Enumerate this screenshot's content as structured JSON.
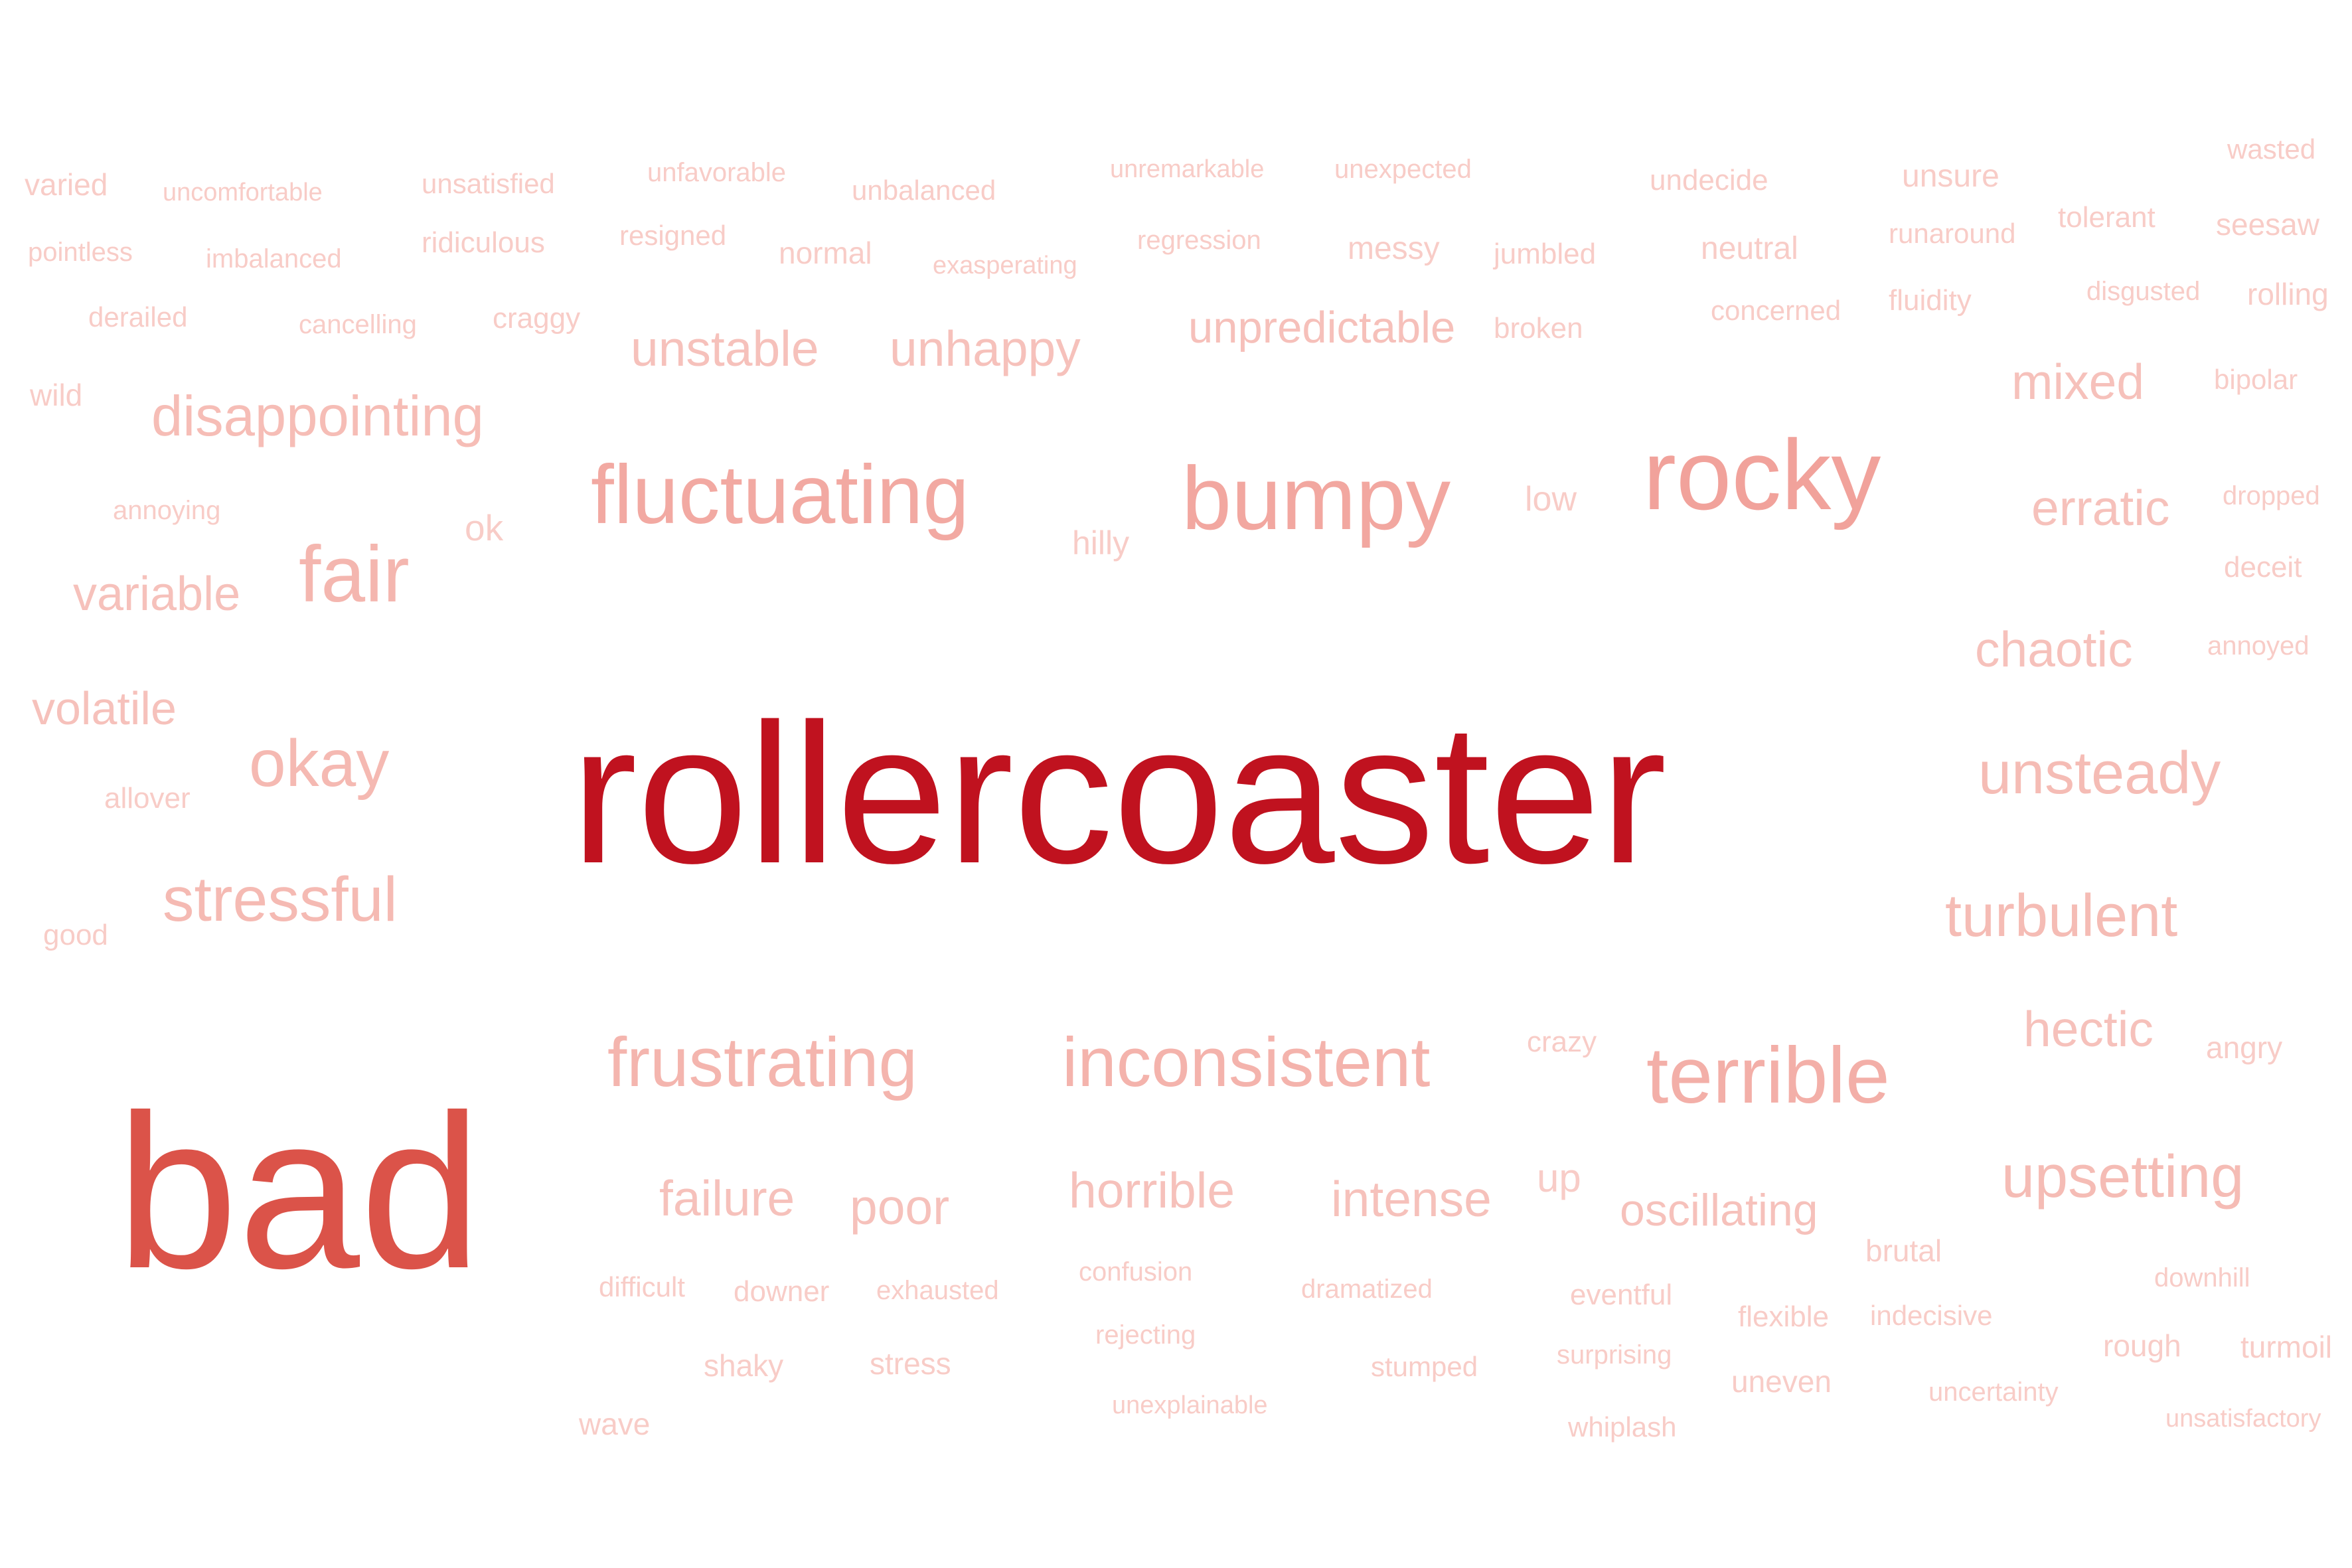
{
  "word_cloud": {
    "words": [
      {
        "text": "rollercoaster",
        "color": "#c0121f"
      },
      {
        "text": "bad",
        "color": "#db5349"
      },
      {
        "text": "rocky",
        "color": "#f1a29b"
      },
      {
        "text": "bumpy",
        "color": "#f2a7a0"
      },
      {
        "text": "fluctuating",
        "color": "#f2a9a2"
      },
      {
        "text": "terrible",
        "color": "#f3afa8"
      },
      {
        "text": "frustrating",
        "color": "#f4b5ae"
      },
      {
        "text": "inconsistent",
        "color": "#f4b3ac"
      },
      {
        "text": "fair",
        "color": "#f4b6af"
      },
      {
        "text": "okay",
        "color": "#f5b9b2"
      },
      {
        "text": "stressful",
        "color": "#f5bab3"
      },
      {
        "text": "disappointing",
        "color": "#f6bdb6"
      },
      {
        "text": "unsteady",
        "color": "#f5bcb5"
      },
      {
        "text": "turbulent",
        "color": "#f5bcb5"
      },
      {
        "text": "upsetting",
        "color": "#f5bcb5"
      },
      {
        "text": "unpredictable",
        "color": "#f6c0ba"
      },
      {
        "text": "unstable",
        "color": "#f6c1bb"
      },
      {
        "text": "unhappy",
        "color": "#f6c1bb"
      },
      {
        "text": "mixed",
        "color": "#f6c1bb"
      },
      {
        "text": "erratic",
        "color": "#f6c1bb"
      },
      {
        "text": "chaotic",
        "color": "#f6c1bb"
      },
      {
        "text": "hectic",
        "color": "#f6c1bb"
      },
      {
        "text": "volatile",
        "color": "#f6c1bb"
      },
      {
        "text": "variable",
        "color": "#f6c1bb"
      },
      {
        "text": "failure",
        "color": "#f6c1bb"
      },
      {
        "text": "poor",
        "color": "#f6c1bb"
      },
      {
        "text": "horrible",
        "color": "#f6c1bb"
      },
      {
        "text": "intense",
        "color": "#f6c1bb"
      },
      {
        "text": "oscillating",
        "color": "#f6c1bb"
      },
      {
        "text": "varied",
        "color": "#f8ccc7"
      },
      {
        "text": "uncomfortable",
        "color": "#f8ccc7"
      },
      {
        "text": "unsatisfied",
        "color": "#f8ccc7"
      },
      {
        "text": "unfavorable",
        "color": "#f8ccc7"
      },
      {
        "text": "unbalanced",
        "color": "#f8ccc7"
      },
      {
        "text": "unremarkable",
        "color": "#f8ccc7"
      },
      {
        "text": "unexpected",
        "color": "#f8ccc7"
      },
      {
        "text": "undecide",
        "color": "#f8ccc7"
      },
      {
        "text": "unsure",
        "color": "#f8ccc7"
      },
      {
        "text": "wasted",
        "color": "#f8ccc7"
      },
      {
        "text": "pointless",
        "color": "#f8ccc7"
      },
      {
        "text": "imbalanced",
        "color": "#f8ccc7"
      },
      {
        "text": "ridiculous",
        "color": "#f8ccc7"
      },
      {
        "text": "resigned",
        "color": "#f8ccc7"
      },
      {
        "text": "normal",
        "color": "#f8ccc7"
      },
      {
        "text": "exasperating",
        "color": "#f8ccc7"
      },
      {
        "text": "regression",
        "color": "#f8ccc7"
      },
      {
        "text": "messy",
        "color": "#f8ccc7"
      },
      {
        "text": "jumbled",
        "color": "#f8ccc7"
      },
      {
        "text": "neutral",
        "color": "#f8ccc7"
      },
      {
        "text": "runaround",
        "color": "#f8ccc7"
      },
      {
        "text": "tolerant",
        "color": "#f8ccc7"
      },
      {
        "text": "seesaw",
        "color": "#f8ccc7"
      },
      {
        "text": "derailed",
        "color": "#f8ccc7"
      },
      {
        "text": "cancelling",
        "color": "#f8ccc7"
      },
      {
        "text": "craggy",
        "color": "#f8ccc7"
      },
      {
        "text": "broken",
        "color": "#f8ccc7"
      },
      {
        "text": "concerned",
        "color": "#f8ccc7"
      },
      {
        "text": "fluidity",
        "color": "#f8ccc7"
      },
      {
        "text": "disgusted",
        "color": "#f8ccc7"
      },
      {
        "text": "rolling",
        "color": "#f8ccc7"
      },
      {
        "text": "wild",
        "color": "#f8ccc7"
      },
      {
        "text": "bipolar",
        "color": "#f8ccc7"
      },
      {
        "text": "annoying",
        "color": "#f8ccc7"
      },
      {
        "text": "ok",
        "color": "#f8ccc7"
      },
      {
        "text": "hilly",
        "color": "#f8ccc7"
      },
      {
        "text": "low",
        "color": "#f8ccc7"
      },
      {
        "text": "dropped",
        "color": "#f8ccc7"
      },
      {
        "text": "deceit",
        "color": "#f8ccc7"
      },
      {
        "text": "annoyed",
        "color": "#f8ccc7"
      },
      {
        "text": "allover",
        "color": "#f8ccc7"
      },
      {
        "text": "good",
        "color": "#f8ccc7"
      },
      {
        "text": "crazy",
        "color": "#f8ccc7"
      },
      {
        "text": "angry",
        "color": "#f8ccc7"
      },
      {
        "text": "up",
        "color": "#f8ccc7"
      },
      {
        "text": "brutal",
        "color": "#f8ccc7"
      },
      {
        "text": "difficult",
        "color": "#f8ccc7"
      },
      {
        "text": "downer",
        "color": "#f8ccc7"
      },
      {
        "text": "exhausted",
        "color": "#f8ccc7"
      },
      {
        "text": "confusion",
        "color": "#f8ccc7"
      },
      {
        "text": "dramatized",
        "color": "#f8ccc7"
      },
      {
        "text": "eventful",
        "color": "#f8ccc7"
      },
      {
        "text": "flexible",
        "color": "#f8ccc7"
      },
      {
        "text": "indecisive",
        "color": "#f8ccc7"
      },
      {
        "text": "downhill",
        "color": "#f8ccc7"
      },
      {
        "text": "rejecting",
        "color": "#f8ccc7"
      },
      {
        "text": "rough",
        "color": "#f8ccc7"
      },
      {
        "text": "turmoil",
        "color": "#f8ccc7"
      },
      {
        "text": "shaky",
        "color": "#f8ccc7"
      },
      {
        "text": "stress",
        "color": "#f8ccc7"
      },
      {
        "text": "stumped",
        "color": "#f8ccc7"
      },
      {
        "text": "surprising",
        "color": "#f8ccc7"
      },
      {
        "text": "uneven",
        "color": "#f8ccc7"
      },
      {
        "text": "uncertainty",
        "color": "#f8ccc7"
      },
      {
        "text": "unsatisfactory",
        "color": "#f8ccc7"
      },
      {
        "text": "wave",
        "color": "#f8ccc7"
      },
      {
        "text": "unexplainable",
        "color": "#f8ccc7"
      },
      {
        "text": "whiplash",
        "color": "#f8ccc7"
      }
    ]
  }
}
